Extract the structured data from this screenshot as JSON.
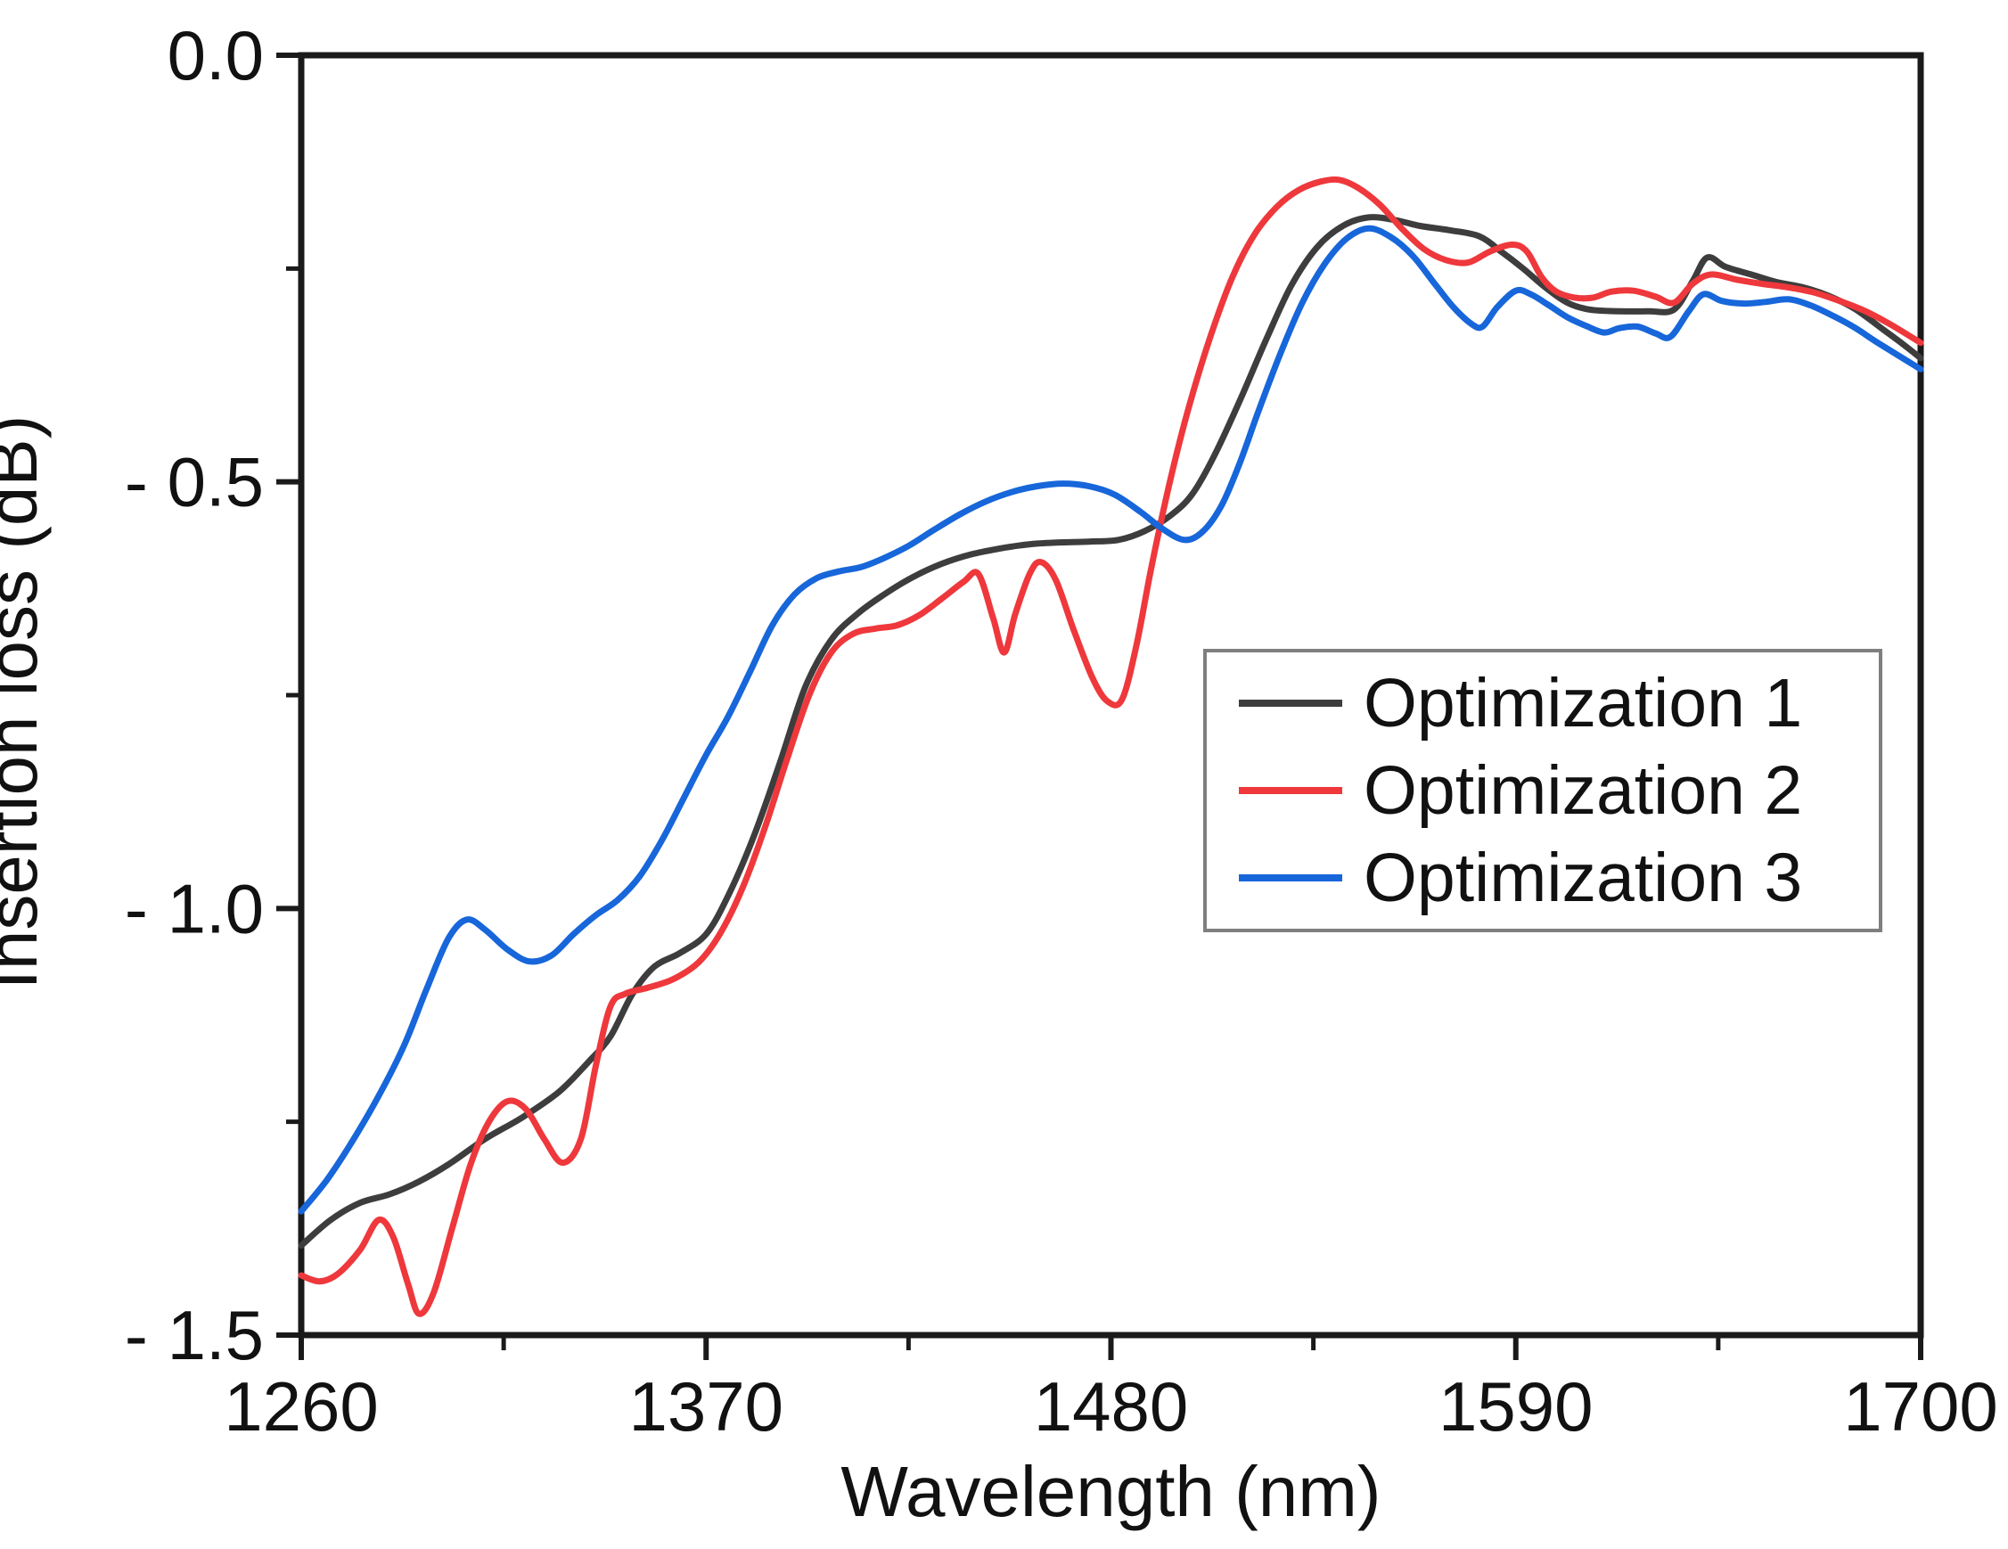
{
  "chart_data": {
    "type": "line",
    "xlabel": "Wavelength (nm)",
    "ylabel": "Insertion loss (dB)",
    "xlim": [
      1260,
      1700
    ],
    "ylim": [
      -1.5,
      0.0
    ],
    "grid": false,
    "frame_color": "#1a1a1a",
    "tick_label_color": "#111111",
    "x_ticks": [
      {
        "v": 1260,
        "label": "1260"
      },
      {
        "v": 1370,
        "label": "1370"
      },
      {
        "v": 1480,
        "label": "1480"
      },
      {
        "v": 1590,
        "label": "1590"
      },
      {
        "v": 1700,
        "label": "1700"
      }
    ],
    "x_minor_ticks": [
      1315,
      1425,
      1535,
      1645
    ],
    "y_ticks": [
      {
        "v": 0.0,
        "label": "0.0"
      },
      {
        "v": -0.5,
        "label": "- 0.5"
      },
      {
        "v": -1.0,
        "label": "- 1.0"
      },
      {
        "v": -1.5,
        "label": "- 1.5"
      }
    ],
    "y_minor_ticks": [
      -0.25,
      -0.75,
      -1.25
    ],
    "legend": {
      "position": "middle-right",
      "border_color": "#7f7f7f",
      "entries": [
        {
          "label": "Optimization 1",
          "color": "#3d3d3d"
        },
        {
          "label": "Optimization 2",
          "color": "#ee383c"
        },
        {
          "label": "Optimization 3",
          "color": "#1766da"
        }
      ]
    },
    "series": [
      {
        "name": "Optimization 1",
        "color": "#3d3d3d",
        "points": [
          [
            1260,
            -1.395
          ],
          [
            1268,
            -1.365
          ],
          [
            1276,
            -1.345
          ],
          [
            1284,
            -1.335
          ],
          [
            1292,
            -1.32
          ],
          [
            1300,
            -1.3
          ],
          [
            1310,
            -1.27
          ],
          [
            1320,
            -1.245
          ],
          [
            1330,
            -1.215
          ],
          [
            1338,
            -1.18
          ],
          [
            1344,
            -1.15
          ],
          [
            1350,
            -1.1
          ],
          [
            1356,
            -1.068
          ],
          [
            1363,
            -1.052
          ],
          [
            1370,
            -1.03
          ],
          [
            1376,
            -0.985
          ],
          [
            1383,
            -0.915
          ],
          [
            1390,
            -0.83
          ],
          [
            1397,
            -0.74
          ],
          [
            1404,
            -0.685
          ],
          [
            1411,
            -0.655
          ],
          [
            1418,
            -0.633
          ],
          [
            1426,
            -0.612
          ],
          [
            1434,
            -0.596
          ],
          [
            1442,
            -0.585
          ],
          [
            1450,
            -0.578
          ],
          [
            1458,
            -0.573
          ],
          [
            1466,
            -0.571
          ],
          [
            1474,
            -0.57
          ],
          [
            1482,
            -0.568
          ],
          [
            1489,
            -0.558
          ],
          [
            1496,
            -0.54
          ],
          [
            1502,
            -0.515
          ],
          [
            1508,
            -0.47
          ],
          [
            1515,
            -0.405
          ],
          [
            1522,
            -0.335
          ],
          [
            1529,
            -0.27
          ],
          [
            1536,
            -0.225
          ],
          [
            1543,
            -0.2
          ],
          [
            1550,
            -0.19
          ],
          [
            1557,
            -0.193
          ],
          [
            1564,
            -0.2
          ],
          [
            1572,
            -0.205
          ],
          [
            1580,
            -0.212
          ],
          [
            1586,
            -0.23
          ],
          [
            1592,
            -0.25
          ],
          [
            1598,
            -0.272
          ],
          [
            1604,
            -0.29
          ],
          [
            1610,
            -0.298
          ],
          [
            1618,
            -0.3
          ],
          [
            1626,
            -0.3
          ],
          [
            1633,
            -0.298
          ],
          [
            1638,
            -0.265
          ],
          [
            1642,
            -0.237
          ],
          [
            1647,
            -0.248
          ],
          [
            1654,
            -0.257
          ],
          [
            1661,
            -0.266
          ],
          [
            1668,
            -0.272
          ],
          [
            1675,
            -0.282
          ],
          [
            1682,
            -0.297
          ],
          [
            1690,
            -0.322
          ],
          [
            1695,
            -0.338
          ],
          [
            1700,
            -0.355
          ]
        ]
      },
      {
        "name": "Optimization 2",
        "color": "#ee383c",
        "points": [
          [
            1260,
            -1.43
          ],
          [
            1265,
            -1.437
          ],
          [
            1270,
            -1.428
          ],
          [
            1276,
            -1.4
          ],
          [
            1281,
            -1.365
          ],
          [
            1285,
            -1.385
          ],
          [
            1289,
            -1.44
          ],
          [
            1292,
            -1.475
          ],
          [
            1296,
            -1.45
          ],
          [
            1301,
            -1.375
          ],
          [
            1306,
            -1.3
          ],
          [
            1311,
            -1.25
          ],
          [
            1316,
            -1.226
          ],
          [
            1321,
            -1.235
          ],
          [
            1326,
            -1.27
          ],
          [
            1331,
            -1.298
          ],
          [
            1336,
            -1.27
          ],
          [
            1340,
            -1.185
          ],
          [
            1344,
            -1.115
          ],
          [
            1348,
            -1.1
          ],
          [
            1354,
            -1.093
          ],
          [
            1361,
            -1.083
          ],
          [
            1368,
            -1.063
          ],
          [
            1374,
            -1.028
          ],
          [
            1380,
            -0.975
          ],
          [
            1386,
            -0.905
          ],
          [
            1392,
            -0.825
          ],
          [
            1398,
            -0.75
          ],
          [
            1404,
            -0.7
          ],
          [
            1410,
            -0.678
          ],
          [
            1416,
            -0.672
          ],
          [
            1422,
            -0.668
          ],
          [
            1428,
            -0.656
          ],
          [
            1434,
            -0.637
          ],
          [
            1440,
            -0.617
          ],
          [
            1444,
            -0.608
          ],
          [
            1448,
            -0.66
          ],
          [
            1451,
            -0.7
          ],
          [
            1454,
            -0.655
          ],
          [
            1458,
            -0.607
          ],
          [
            1461,
            -0.594
          ],
          [
            1465,
            -0.615
          ],
          [
            1470,
            -0.675
          ],
          [
            1475,
            -0.73
          ],
          [
            1479,
            -0.757
          ],
          [
            1483,
            -0.755
          ],
          [
            1487,
            -0.69
          ],
          [
            1491,
            -0.6
          ],
          [
            1496,
            -0.5
          ],
          [
            1501,
            -0.415
          ],
          [
            1507,
            -0.33
          ],
          [
            1513,
            -0.26
          ],
          [
            1519,
            -0.21
          ],
          [
            1525,
            -0.178
          ],
          [
            1531,
            -0.158
          ],
          [
            1537,
            -0.148
          ],
          [
            1542,
            -0.146
          ],
          [
            1547,
            -0.155
          ],
          [
            1553,
            -0.175
          ],
          [
            1559,
            -0.203
          ],
          [
            1565,
            -0.227
          ],
          [
            1571,
            -0.24
          ],
          [
            1577,
            -0.243
          ],
          [
            1583,
            -0.23
          ],
          [
            1589,
            -0.222
          ],
          [
            1593,
            -0.23
          ],
          [
            1597,
            -0.26
          ],
          [
            1601,
            -0.277
          ],
          [
            1606,
            -0.284
          ],
          [
            1611,
            -0.284
          ],
          [
            1616,
            -0.277
          ],
          [
            1622,
            -0.276
          ],
          [
            1628,
            -0.283
          ],
          [
            1633,
            -0.29
          ],
          [
            1638,
            -0.268
          ],
          [
            1643,
            -0.257
          ],
          [
            1650,
            -0.263
          ],
          [
            1657,
            -0.268
          ],
          [
            1664,
            -0.272
          ],
          [
            1671,
            -0.278
          ],
          [
            1678,
            -0.288
          ],
          [
            1685,
            -0.3
          ],
          [
            1692,
            -0.316
          ],
          [
            1700,
            -0.337
          ]
        ]
      },
      {
        "name": "Optimization 3",
        "color": "#1766da",
        "points": [
          [
            1260,
            -1.355
          ],
          [
            1267,
            -1.318
          ],
          [
            1274,
            -1.272
          ],
          [
            1281,
            -1.22
          ],
          [
            1288,
            -1.16
          ],
          [
            1294,
            -1.095
          ],
          [
            1300,
            -1.035
          ],
          [
            1305,
            -1.013
          ],
          [
            1310,
            -1.025
          ],
          [
            1316,
            -1.048
          ],
          [
            1322,
            -1.062
          ],
          [
            1328,
            -1.055
          ],
          [
            1334,
            -1.03
          ],
          [
            1340,
            -1.008
          ],
          [
            1346,
            -0.99
          ],
          [
            1352,
            -0.962
          ],
          [
            1358,
            -0.92
          ],
          [
            1364,
            -0.87
          ],
          [
            1370,
            -0.82
          ],
          [
            1376,
            -0.775
          ],
          [
            1382,
            -0.722
          ],
          [
            1388,
            -0.668
          ],
          [
            1394,
            -0.632
          ],
          [
            1400,
            -0.613
          ],
          [
            1406,
            -0.605
          ],
          [
            1412,
            -0.6
          ],
          [
            1418,
            -0.59
          ],
          [
            1425,
            -0.575
          ],
          [
            1432,
            -0.556
          ],
          [
            1439,
            -0.538
          ],
          [
            1446,
            -0.523
          ],
          [
            1453,
            -0.512
          ],
          [
            1460,
            -0.505
          ],
          [
            1467,
            -0.502
          ],
          [
            1474,
            -0.505
          ],
          [
            1481,
            -0.515
          ],
          [
            1488,
            -0.535
          ],
          [
            1494,
            -0.555
          ],
          [
            1500,
            -0.568
          ],
          [
            1505,
            -0.558
          ],
          [
            1510,
            -0.528
          ],
          [
            1515,
            -0.478
          ],
          [
            1520,
            -0.418
          ],
          [
            1526,
            -0.35
          ],
          [
            1532,
            -0.29
          ],
          [
            1538,
            -0.245
          ],
          [
            1544,
            -0.215
          ],
          [
            1550,
            -0.203
          ],
          [
            1556,
            -0.213
          ],
          [
            1562,
            -0.235
          ],
          [
            1568,
            -0.268
          ],
          [
            1573,
            -0.295
          ],
          [
            1578,
            -0.315
          ],
          [
            1581,
            -0.318
          ],
          [
            1585,
            -0.295
          ],
          [
            1590,
            -0.276
          ],
          [
            1594,
            -0.28
          ],
          [
            1599,
            -0.293
          ],
          [
            1604,
            -0.307
          ],
          [
            1609,
            -0.317
          ],
          [
            1614,
            -0.325
          ],
          [
            1618,
            -0.32
          ],
          [
            1623,
            -0.318
          ],
          [
            1628,
            -0.326
          ],
          [
            1632,
            -0.33
          ],
          [
            1637,
            -0.3
          ],
          [
            1641,
            -0.28
          ],
          [
            1646,
            -0.288
          ],
          [
            1652,
            -0.291
          ],
          [
            1658,
            -0.289
          ],
          [
            1664,
            -0.286
          ],
          [
            1670,
            -0.293
          ],
          [
            1676,
            -0.305
          ],
          [
            1682,
            -0.319
          ],
          [
            1688,
            -0.336
          ],
          [
            1694,
            -0.352
          ],
          [
            1700,
            -0.368
          ]
        ]
      }
    ]
  }
}
